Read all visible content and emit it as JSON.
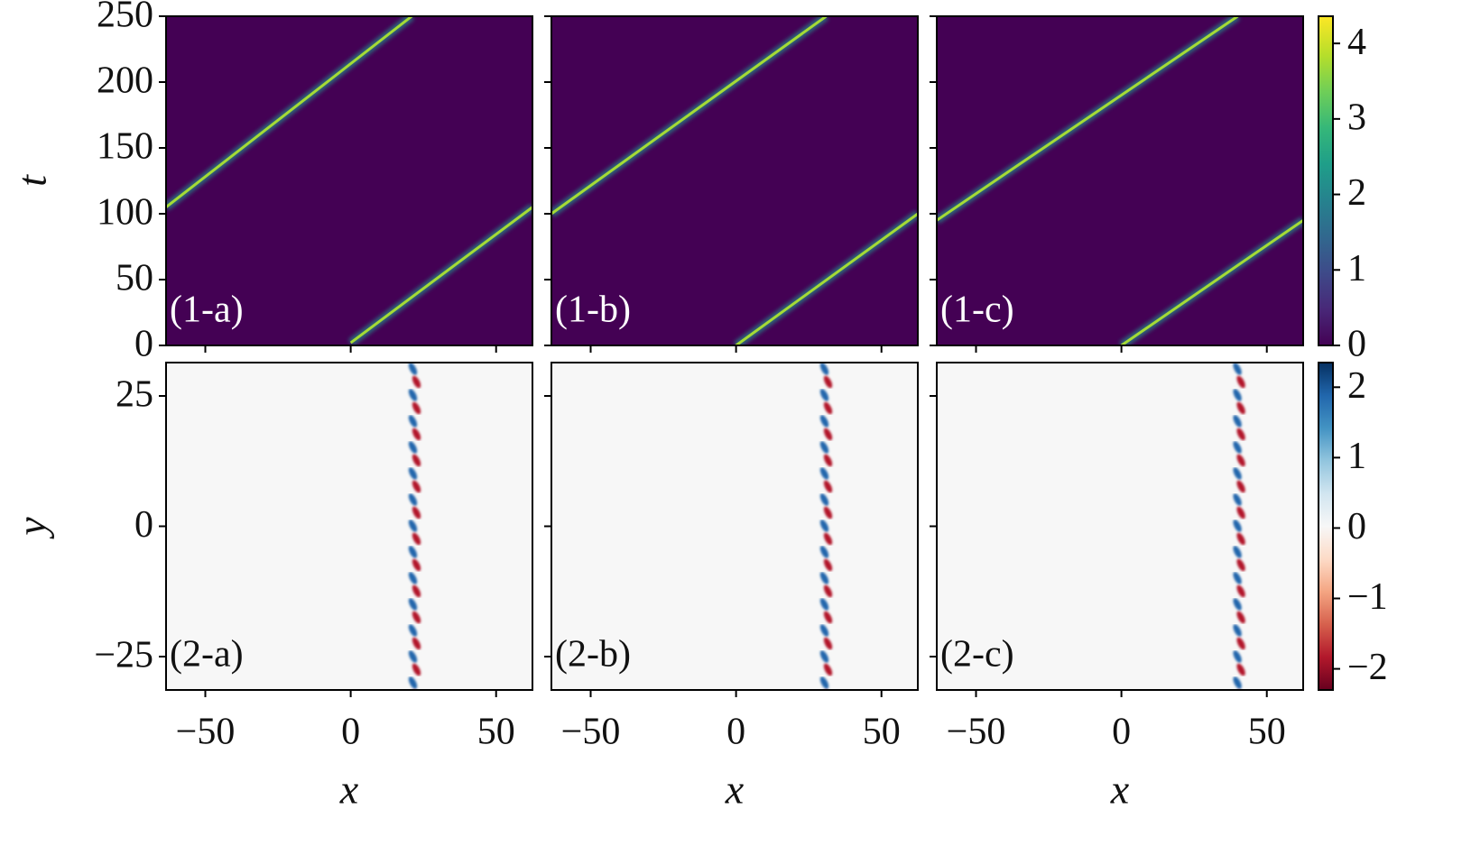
{
  "chart_data": [
    {
      "type": "heatmap",
      "label": "(1-a)",
      "ylabel": "t",
      "background": "#440154",
      "tick_labels": {
        "x": false,
        "y": true
      },
      "xlim": [
        -63.5,
        62.5
      ],
      "ylim": [
        0,
        250
      ],
      "xticks": [
        -50,
        0,
        50
      ],
      "yticks": [
        0,
        50,
        100,
        150,
        200,
        250
      ],
      "trajectories": [
        {
          "color": "#a5db36",
          "x": [
            -63.5,
            21
          ],
          "values": [
            105,
            250
          ]
        },
        {
          "color": "#a5db36",
          "x": [
            0,
            62.5
          ],
          "values": [
            2,
            105
          ]
        }
      ]
    },
    {
      "type": "heatmap",
      "label": "(1-b)",
      "background": "#440154",
      "tick_labels": {
        "x": false,
        "y": false
      },
      "xlim": [
        -63.5,
        62.5
      ],
      "ylim": [
        0,
        250
      ],
      "xticks": [
        -50,
        0,
        50
      ],
      "yticks": [
        0,
        50,
        100,
        150,
        200,
        250
      ],
      "trajectories": [
        {
          "color": "#a5db36",
          "x": [
            -63.5,
            31
          ],
          "values": [
            100,
            250
          ]
        },
        {
          "color": "#a5db36",
          "x": [
            0,
            62.5
          ],
          "values": [
            0,
            100
          ]
        }
      ]
    },
    {
      "type": "heatmap",
      "label": "(1-c)",
      "background": "#440154",
      "tick_labels": {
        "x": false,
        "y": false
      },
      "xlim": [
        -63.5,
        62.5
      ],
      "ylim": [
        0,
        250
      ],
      "xticks": [
        -50,
        0,
        50
      ],
      "yticks": [
        0,
        50,
        100,
        150,
        200,
        250
      ],
      "trajectories": [
        {
          "color": "#a5db36",
          "x": [
            -63.5,
            40
          ],
          "values": [
            95,
            250
          ]
        },
        {
          "color": "#a5db36",
          "x": [
            0,
            62.5
          ],
          "values": [
            0,
            95
          ]
        }
      ]
    },
    {
      "type": "front",
      "label": "(2-a)",
      "ylabel": "y",
      "xlabel": "x",
      "background": "#f7f7f7",
      "tick_labels": {
        "x": true,
        "y": true
      },
      "xlim": [
        -63.5,
        62.5
      ],
      "ylim": [
        -31.4,
        31.4
      ],
      "xticks": [
        {
          "value": -50,
          "label": "−50"
        },
        0,
        50
      ],
      "yticks": [
        {
          "value": -25,
          "label": "−25"
        },
        0,
        25
      ],
      "front_x": 22,
      "colors": [
        "#2166ac",
        "#b2182b"
      ]
    },
    {
      "type": "front",
      "label": "(2-b)",
      "xlabel": "x",
      "background": "#f7f7f7",
      "tick_labels": {
        "x": true,
        "y": false
      },
      "xlim": [
        -63.5,
        62.5
      ],
      "ylim": [
        -31.4,
        31.4
      ],
      "xticks": [
        {
          "value": -50,
          "label": "−50"
        },
        0,
        50
      ],
      "yticks": [
        -25,
        0,
        25
      ],
      "front_x": 31,
      "colors": [
        "#2166ac",
        "#b2182b"
      ]
    },
    {
      "type": "front",
      "label": "(2-c)",
      "xlabel": "x",
      "background": "#f7f7f7",
      "tick_labels": {
        "x": true,
        "y": false
      },
      "xlim": [
        -63.5,
        62.5
      ],
      "ylim": [
        -31.4,
        31.4
      ],
      "xticks": [
        {
          "value": -50,
          "label": "−50"
        },
        0,
        50
      ],
      "yticks": [
        -25,
        0,
        25
      ],
      "front_x": 40.5,
      "colors": [
        "#2166ac",
        "#b2182b"
      ]
    },
    {
      "type": "colorbar",
      "colormap": "viridis",
      "zlim": [
        0,
        4.36
      ],
      "ticks": [
        0,
        1,
        2,
        3,
        4
      ]
    },
    {
      "type": "colorbar",
      "colormap": "RdBu",
      "zlim": [
        -2.3,
        2.35
      ],
      "ticks": [
        {
          "value": -2,
          "label": "−2"
        },
        {
          "value": -1,
          "label": "−1"
        },
        0,
        1,
        2
      ]
    }
  ]
}
